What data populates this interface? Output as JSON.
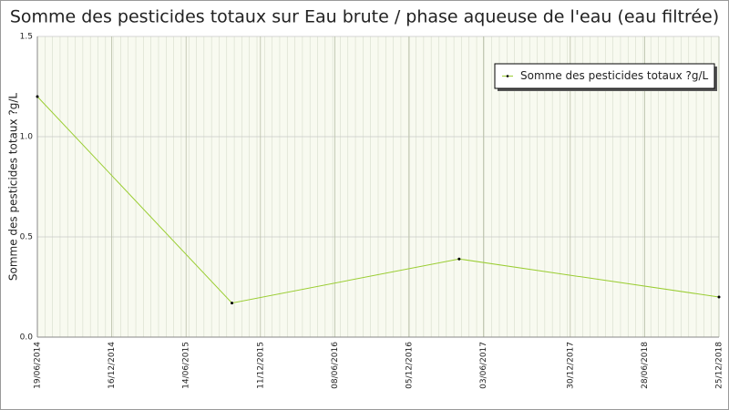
{
  "chart_data": {
    "type": "line",
    "title": "Somme des pesticides totaux sur Eau brute / phase aqueuse de l'eau (eau filtrée)",
    "y_label": "Somme des pesticides totaux ?g/L",
    "x": [
      "2014-06-19",
      "2015-10-03",
      "2017-04-05",
      "2018-12-25"
    ],
    "series": [
      {
        "name": "Somme des pesticides totaux ?g/L",
        "color": "#9acd32",
        "values": [
          1.2,
          0.17,
          0.39,
          0.2
        ]
      }
    ],
    "xlim": [
      "2014-06-19",
      "2018-12-25"
    ],
    "xticks": [
      {
        "value": "2014-06-19",
        "label": "19/06/2014"
      },
      {
        "value": "2014-12-16",
        "label": "16/12/2014"
      },
      {
        "value": "2015-06-14",
        "label": "14/06/2015"
      },
      {
        "value": "2015-12-11",
        "label": "11/12/2015"
      },
      {
        "value": "2016-06-08",
        "label": "08/06/2016"
      },
      {
        "value": "2016-12-05",
        "label": "05/12/2016"
      },
      {
        "value": "2017-06-03",
        "label": "03/06/2017"
      },
      {
        "value": "2017-12-30",
        "label": "30/12/2017"
      },
      {
        "value": "2018-06-28",
        "label": "28/06/2018"
      },
      {
        "value": "2018-12-25",
        "label": "25/12/2018"
      }
    ],
    "ylim": [
      0,
      1.5
    ],
    "yticks": [
      {
        "value": 0,
        "label": "0.0"
      },
      0.5,
      {
        "value": 1,
        "label": "1.0"
      },
      {
        "value": 1.5,
        "label": "1.5"
      }
    ],
    "grid": true,
    "legend": "top-right"
  }
}
